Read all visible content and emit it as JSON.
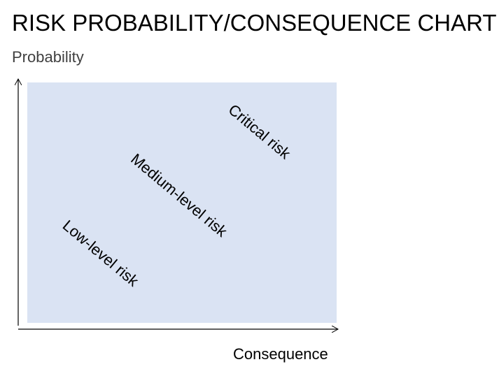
{
  "header": {
    "title": "RISK PROBABILITY/CONSEQUENCE CHART"
  },
  "axes": {
    "y_label": "Probability",
    "x_label": "Consequence"
  },
  "regions": [
    {
      "label": "Critical risk"
    },
    {
      "label": "Medium-level risk"
    },
    {
      "label": "Low-level risk"
    }
  ]
}
